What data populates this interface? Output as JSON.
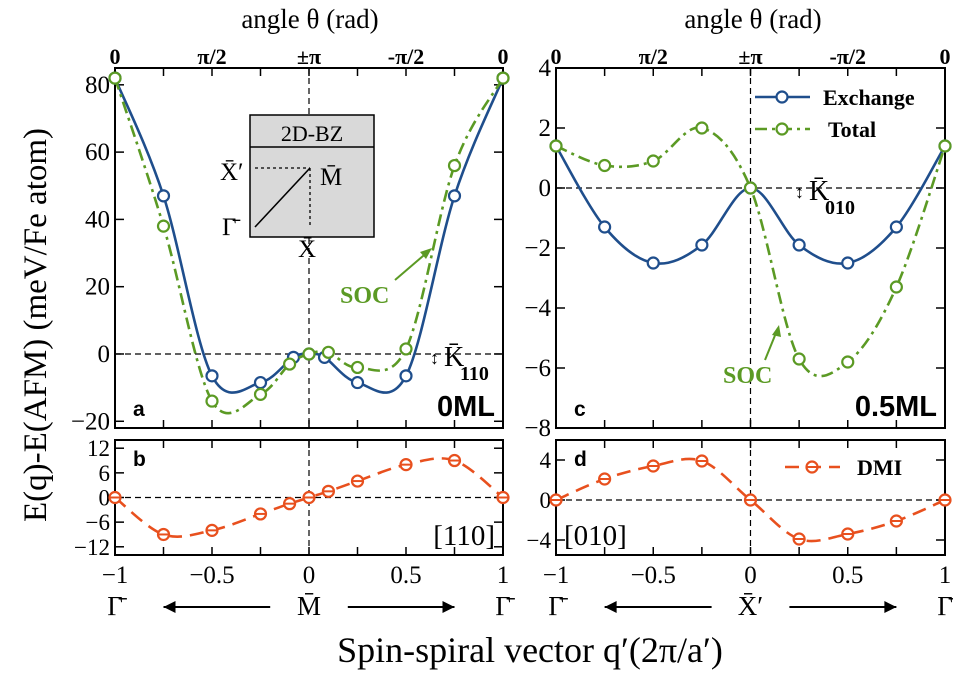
{
  "figure": {
    "ylabel": "E(q)-E(AFM) (meV/Fe atom)",
    "xlabel": "Spin-spiral vector q′(2π/a′)",
    "top_axis_title": "angle θ (rad)",
    "top_ticks": [
      "0",
      "π/2",
      "±π",
      "-π/2",
      "0"
    ],
    "colors": {
      "exchange": "#1f4e8c",
      "soc": "#5b9a24",
      "dmi": "#e8501e",
      "frame": "#000000"
    }
  },
  "chart_data": [
    {
      "panel": "a",
      "type": "line",
      "title": "",
      "xlabel": "",
      "ylabel": "",
      "xlim": [
        -1,
        1
      ],
      "ylim": [
        -22,
        85
      ],
      "yticks": [
        80,
        60,
        40,
        20,
        0,
        -20
      ],
      "annotations": {
        "panel_label": "a",
        "coverage": "0ML",
        "k_label": "K̄",
        "k_sub": "110",
        "soc_label": "SOC"
      },
      "inset": {
        "title": "2D-BZ",
        "points": [
          "X̄′",
          "M̄",
          "Γ̄",
          "X̄"
        ]
      },
      "series": [
        {
          "key": "exchange",
          "x": [
            -1,
            -0.75,
            -0.5,
            -0.25,
            -0.08,
            0,
            0.08,
            0.25,
            0.5,
            0.75,
            1
          ],
          "values": [
            82,
            47,
            -6.5,
            -8.5,
            -1,
            0,
            -1,
            -8.5,
            -6.5,
            47,
            82
          ]
        },
        {
          "key": "total",
          "x": [
            -1,
            -0.75,
            -0.5,
            -0.25,
            -0.1,
            0,
            0.1,
            0.25,
            0.5,
            0.75,
            1
          ],
          "values": [
            82,
            38,
            -14,
            -12,
            -3,
            0,
            0.5,
            -4,
            1.5,
            56,
            82
          ]
        }
      ]
    },
    {
      "panel": "b",
      "type": "line",
      "title": "",
      "xlabel": "",
      "ylabel": "",
      "xlim": [
        -1,
        1
      ],
      "ylim": [
        -14,
        14
      ],
      "yticks": [
        12,
        6,
        0,
        -6,
        -12
      ],
      "xticks": [
        "-1",
        "-0.5",
        "0",
        "0.5",
        "1"
      ],
      "xpoints": [
        "Γ̄",
        "M̄",
        "Γ̄"
      ],
      "annotations": {
        "panel_label": "b",
        "direction": "[110]"
      },
      "series": [
        {
          "key": "dmi",
          "x": [
            -1,
            -0.75,
            -0.5,
            -0.25,
            -0.1,
            0,
            0.1,
            0.25,
            0.5,
            0.75,
            1
          ],
          "values": [
            0,
            -9,
            -8,
            -4,
            -1.5,
            0,
            1.5,
            4,
            8,
            9,
            0
          ]
        }
      ]
    },
    {
      "panel": "c",
      "type": "line",
      "title": "",
      "xlabel": "",
      "ylabel": "",
      "xlim": [
        -1,
        1
      ],
      "ylim": [
        -8,
        4
      ],
      "yticks": [
        4,
        2,
        0,
        -2,
        -4,
        -6,
        -8
      ],
      "annotations": {
        "panel_label": "c",
        "coverage": "0.5ML",
        "k_label": "K̄",
        "k_sub": "010",
        "soc_label": "SOC"
      },
      "legend": {
        "placement": "top-right",
        "exchange": "Exchange",
        "total": "Total"
      },
      "series": [
        {
          "key": "exchange",
          "name": "Exchange",
          "x": [
            -1,
            -0.75,
            -0.5,
            -0.25,
            0,
            0.25,
            0.5,
            0.75,
            1
          ],
          "values": [
            1.4,
            -1.3,
            -2.5,
            -1.9,
            0,
            -1.9,
            -2.5,
            -1.3,
            1.4
          ]
        },
        {
          "key": "total",
          "name": "Total",
          "x": [
            -1,
            -0.75,
            -0.5,
            -0.25,
            0,
            0.25,
            0.5,
            0.75,
            1
          ],
          "values": [
            1.4,
            0.75,
            0.9,
            2.0,
            0,
            -5.7,
            -5.8,
            -3.3,
            1.4
          ]
        }
      ]
    },
    {
      "panel": "d",
      "type": "line",
      "title": "",
      "xlabel": "",
      "ylabel": "",
      "xlim": [
        -1,
        1
      ],
      "ylim": [
        -5.5,
        6
      ],
      "yticks": [
        4,
        0,
        -4
      ],
      "xticks": [
        "-1",
        "-0.5",
        "0",
        "0.5",
        "1"
      ],
      "xpoints": [
        "Γ̄",
        "X̄′",
        "Γ̄"
      ],
      "annotations": {
        "panel_label": "d",
        "direction": "[010]"
      },
      "legend": {
        "placement": "top-right",
        "dmi": "DMI"
      },
      "series": [
        {
          "key": "dmi",
          "name": "DMI",
          "x": [
            -1,
            -0.75,
            -0.5,
            -0.25,
            0,
            0.25,
            0.5,
            0.75,
            1
          ],
          "values": [
            0,
            2.1,
            3.4,
            3.9,
            0,
            -3.9,
            -3.4,
            -2.1,
            0
          ]
        }
      ]
    }
  ]
}
